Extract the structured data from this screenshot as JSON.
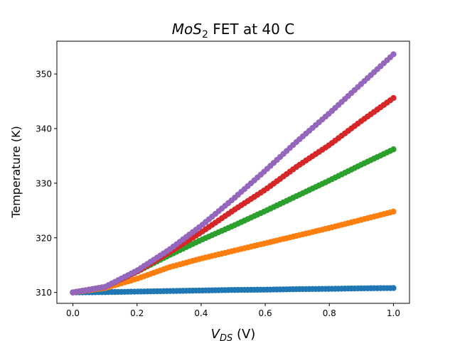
{
  "chart_data": {
    "type": "scatter",
    "title": {
      "italic": "MoS",
      "sub": "2",
      "rest": " FET at 40 C"
    },
    "xlabel": {
      "italic": "V",
      "sub": "DS",
      "rest": " (V)"
    },
    "ylabel": "Temperature (K)",
    "xlim": [
      -0.05,
      1.05
    ],
    "ylim": [
      308,
      356
    ],
    "xticks": [
      0.0,
      0.2,
      0.4,
      0.6,
      0.8,
      1.0
    ],
    "xtick_labels": [
      "0.0",
      "0.2",
      "0.4",
      "0.6",
      "0.8",
      "1.0"
    ],
    "yticks": [
      310,
      320,
      330,
      340,
      350
    ],
    "ytick_labels": [
      "310",
      "320",
      "330",
      "340",
      "350"
    ],
    "grid": false,
    "points_per_series": 100,
    "series": [
      {
        "color": "#1f77b4",
        "x": [
          0.0,
          0.1,
          0.2,
          0.3,
          0.4,
          0.5,
          0.6,
          0.7,
          0.8,
          0.9,
          1.0
        ],
        "y": [
          310.0,
          310.05,
          310.15,
          310.25,
          310.35,
          310.45,
          310.5,
          310.6,
          310.65,
          310.75,
          310.8
        ]
      },
      {
        "color": "#ff7f0e",
        "x": [
          0.0,
          0.1,
          0.2,
          0.3,
          0.4,
          0.5,
          0.6,
          0.7,
          0.8,
          0.9,
          1.0
        ],
        "y": [
          310.0,
          310.8,
          312.5,
          314.6,
          316.2,
          317.6,
          319.0,
          320.4,
          321.8,
          323.3,
          324.8
        ]
      },
      {
        "color": "#2ca02c",
        "x": [
          0.0,
          0.1,
          0.2,
          0.3,
          0.4,
          0.5,
          0.6,
          0.7,
          0.8,
          0.9,
          1.0
        ],
        "y": [
          310.0,
          311.0,
          313.8,
          316.8,
          319.6,
          322.2,
          324.9,
          327.7,
          330.5,
          333.4,
          336.2
        ]
      },
      {
        "color": "#d62728",
        "x": [
          0.0,
          0.1,
          0.2,
          0.3,
          0.4,
          0.5,
          0.6,
          0.7,
          0.8,
          0.9,
          1.0
        ],
        "y": [
          310.0,
          311.0,
          313.8,
          317.3,
          321.0,
          325.0,
          328.8,
          333.1,
          337.0,
          341.4,
          345.6
        ]
      },
      {
        "color": "#9467bd",
        "x": [
          0.0,
          0.1,
          0.2,
          0.3,
          0.4,
          0.5,
          0.6,
          0.7,
          0.8,
          0.9,
          1.0
        ],
        "y": [
          310.0,
          311.0,
          314.0,
          317.8,
          322.2,
          327.1,
          332.3,
          337.7,
          342.8,
          348.2,
          353.6
        ]
      }
    ]
  }
}
